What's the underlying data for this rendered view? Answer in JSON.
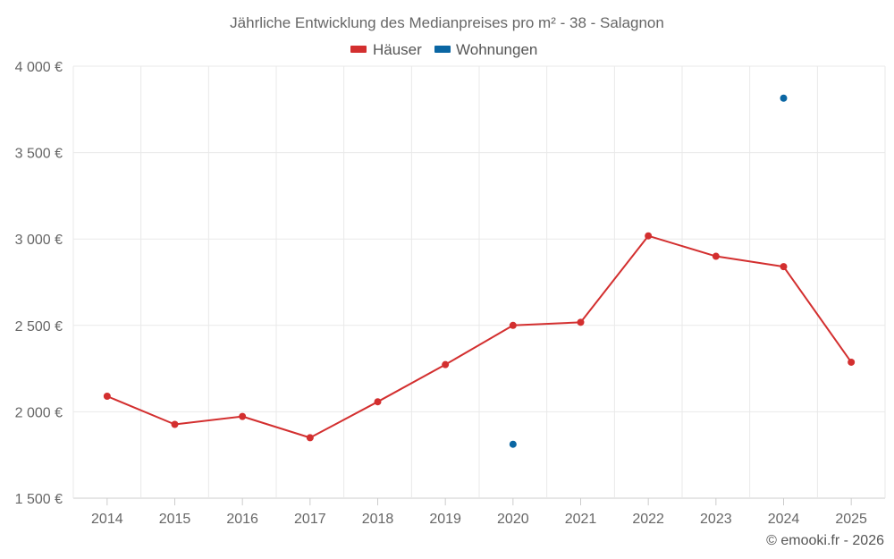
{
  "chart_data": {
    "type": "line",
    "title": "Jährliche Entwicklung des Medianpreises pro m² - 38 - Salagnon",
    "categories": [
      "2014",
      "2015",
      "2016",
      "2017",
      "2018",
      "2019",
      "2020",
      "2021",
      "2022",
      "2023",
      "2024",
      "2025"
    ],
    "series": [
      {
        "name": "Häuser",
        "color": "#d32f2f",
        "values": [
          2090,
          1927,
          1973,
          1850,
          2058,
          2273,
          2500,
          2518,
          3018,
          2900,
          2840,
          2287
        ]
      },
      {
        "name": "Wohnungen",
        "color": "#0a66a3",
        "values": [
          null,
          null,
          null,
          null,
          null,
          null,
          1812,
          null,
          null,
          null,
          3815,
          null
        ]
      }
    ],
    "ylim": [
      1500,
      4000
    ],
    "yticks": [
      1500,
      2000,
      2500,
      3000,
      3500,
      4000
    ],
    "ytick_labels": [
      "1 500 €",
      "2 000 €",
      "2 500 €",
      "3 000 €",
      "3 500 €",
      "4 000 €"
    ],
    "xlabel": "",
    "ylabel": "",
    "grid": true,
    "legend_position": "top-center"
  },
  "copyright": "© emooki.fr - 2026"
}
